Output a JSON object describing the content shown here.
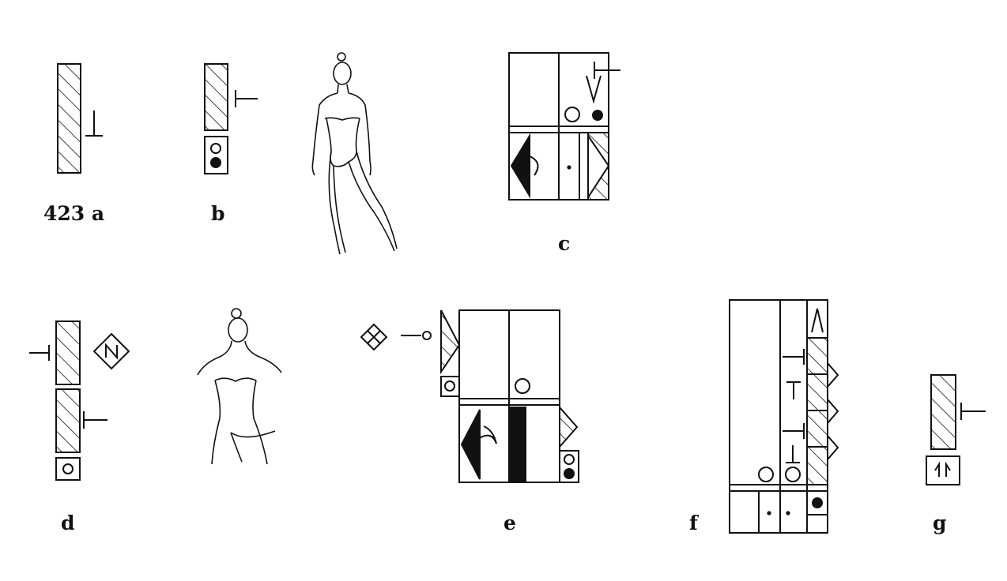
{
  "figure_number": "423",
  "labels": {
    "a": "a",
    "b": "b",
    "c": "c",
    "d": "d",
    "e": "e",
    "f": "f",
    "g": "g"
  },
  "colors": {
    "ink": "#111111",
    "paper": "#ffffff"
  },
  "icons": [
    "hatched-staff-icon",
    "hold-sign-icon",
    "circle-icon",
    "dot-icon",
    "triangle-icon",
    "dancer-figure-icon",
    "diamond-sign-icon"
  ]
}
